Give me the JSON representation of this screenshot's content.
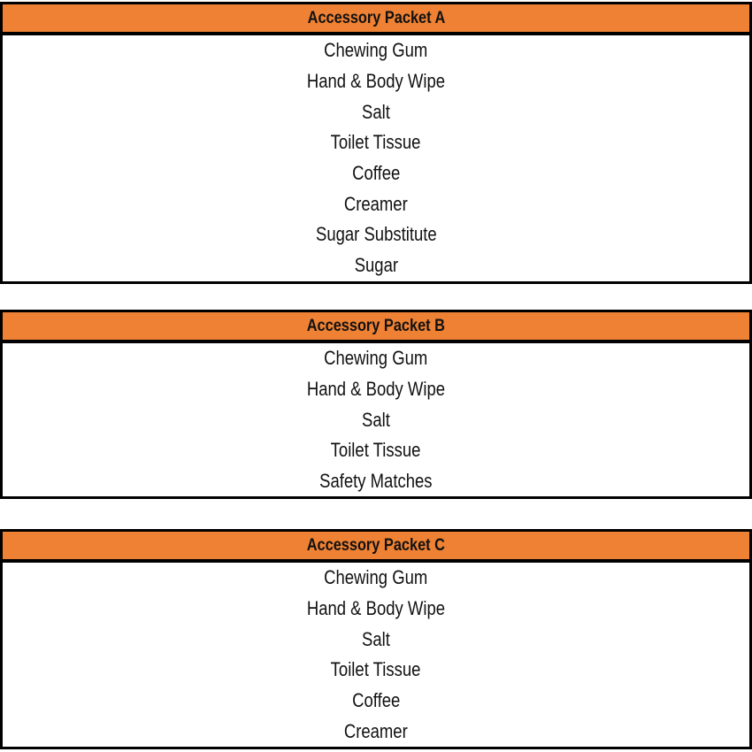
{
  "colors": {
    "header": "#ee8133",
    "border": "#000000"
  },
  "packets": [
    {
      "title": "Accessory Packet A",
      "items": [
        "Chewing Gum",
        "Hand & Body Wipe",
        "Salt",
        "Toilet Tissue",
        "Coffee",
        "Creamer",
        "Sugar Substitute",
        "Sugar"
      ]
    },
    {
      "title": "Accessory Packet B",
      "items": [
        "Chewing Gum",
        "Hand & Body Wipe",
        "Salt",
        "Toilet Tissue",
        "Safety Matches"
      ]
    },
    {
      "title": "Accessory Packet C",
      "items": [
        "Chewing Gum",
        "Hand & Body Wipe",
        "Salt",
        "Toilet Tissue",
        "Coffee",
        "Creamer"
      ]
    }
  ]
}
